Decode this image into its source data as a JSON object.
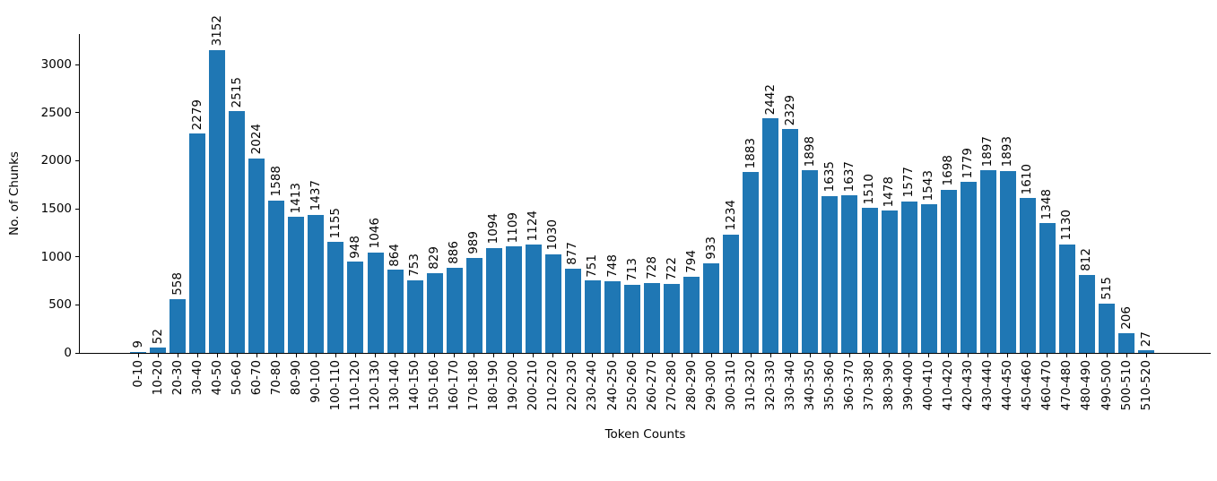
{
  "chart_data": {
    "type": "bar",
    "title": "",
    "xlabel": "Token Counts",
    "ylabel": "No. of Chunks",
    "categories": [
      "0-10",
      "10-20",
      "20-30",
      "30-40",
      "40-50",
      "50-60",
      "60-70",
      "70-80",
      "80-90",
      "90-100",
      "100-110",
      "110-120",
      "120-130",
      "130-140",
      "140-150",
      "150-160",
      "160-170",
      "170-180",
      "180-190",
      "190-200",
      "200-210",
      "210-220",
      "220-230",
      "230-240",
      "240-250",
      "250-260",
      "260-270",
      "270-280",
      "280-290",
      "290-300",
      "300-310",
      "310-320",
      "320-330",
      "330-340",
      "340-350",
      "350-360",
      "360-370",
      "370-380",
      "380-390",
      "390-400",
      "400-410",
      "410-420",
      "420-430",
      "430-440",
      "440-450",
      "450-460",
      "460-470",
      "470-480",
      "480-490",
      "490-500",
      "500-510",
      "510-520"
    ],
    "values": [
      9,
      52,
      558,
      2279,
      3152,
      2515,
      2024,
      1588,
      1413,
      1437,
      1155,
      948,
      1046,
      864,
      753,
      829,
      886,
      989,
      1094,
      1109,
      1124,
      1030,
      877,
      751,
      748,
      713,
      728,
      722,
      794,
      933,
      1234,
      1883,
      2442,
      2329,
      1898,
      1635,
      1637,
      1510,
      1478,
      1577,
      1543,
      1698,
      1779,
      1897,
      1893,
      1610,
      1348,
      1130,
      812,
      515,
      206,
      27
    ],
    "yticks": [
      0,
      500,
      1000,
      1500,
      2000,
      2500,
      3000
    ],
    "ylim": [
      0,
      3317
    ],
    "bar_color": "#1f77b4",
    "bar_label_rotation": 90,
    "x_tick_rotation": 90,
    "grid": false,
    "legend": "none"
  }
}
